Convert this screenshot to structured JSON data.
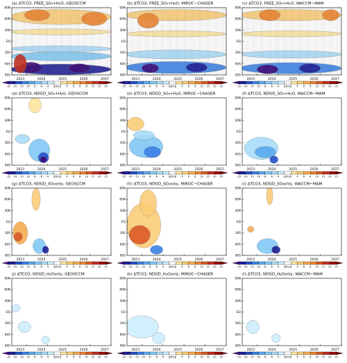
{
  "chart_data": [
    {
      "type": "contour",
      "title": "(a) ΔTCO3, FREE_SO₄+H₂O, GEOSCCM",
      "xlim": [
        2022.3,
        2027
      ],
      "xticks": [
        2023,
        2024,
        2025,
        2026,
        2027
      ],
      "ylim": [
        -90,
        90
      ],
      "yticks": [
        {
          "value": -90,
          "label": "90S"
        },
        {
          "value": -60,
          "label": "60S"
        },
        {
          "value": -30,
          "label": "30S"
        },
        {
          "value": 0,
          "label": "EQ"
        },
        {
          "value": 30,
          "label": "30N"
        },
        {
          "value": 60,
          "label": "60N"
        },
        {
          "value": 90,
          "label": "90N"
        }
      ],
      "colorbar": {
        "levels": [
          -25,
          -20,
          -15,
          -10,
          -8,
          -6,
          -4,
          -2,
          2,
          4,
          6,
          8,
          10,
          15,
          20,
          25
        ],
        "colors": [
          "#3c0a78",
          "#1e1e96",
          "#2450c8",
          "#3c82e6",
          "#5aaaf0",
          "#82c8f5",
          "#aadcfa",
          "#cdeefc",
          "#ffffff",
          "#fde6a0",
          "#fbcd78",
          "#f6ac50",
          "#ee8632",
          "#dc5a28",
          "#c32d1e",
          "#9b0f0f",
          "#6e0000"
        ],
        "label": "[DU]"
      }
    },
    {
      "type": "contour",
      "title": "(b) ΔTCO3, FREE_SO₄+H₂O, MIROC−CHASER",
      "xlim": [
        2022.3,
        2027
      ],
      "xticks": [
        2023,
        2024,
        2025,
        2026,
        2027
      ],
      "ylim": [
        -90,
        90
      ],
      "yticks": [
        {
          "value": -90,
          "label": "90S"
        },
        {
          "value": -60,
          "label": "60S"
        },
        {
          "value": -30,
          "label": "30S"
        },
        {
          "value": 0,
          "label": "EQ"
        },
        {
          "value": 30,
          "label": "30N"
        },
        {
          "value": 60,
          "label": "60N"
        },
        {
          "value": 90,
          "label": "90N"
        }
      ],
      "colorbar": {
        "levels": [
          -25,
          -20,
          -15,
          -10,
          -8,
          -6,
          -4,
          -2,
          2,
          4,
          6,
          8,
          10,
          15,
          20,
          25
        ],
        "colors": [
          "#3c0a78",
          "#1e1e96",
          "#2450c8",
          "#3c82e6",
          "#5aaaf0",
          "#82c8f5",
          "#aadcfa",
          "#cdeefc",
          "#ffffff",
          "#fde6a0",
          "#fbcd78",
          "#f6ac50",
          "#ee8632",
          "#dc5a28",
          "#c32d1e",
          "#9b0f0f",
          "#6e0000"
        ],
        "label": "[DU]"
      }
    },
    {
      "type": "contour",
      "title": "(c) ΔTCO3, FREE_SO₄+H₂O, WACCM−MAM",
      "xlim": [
        2022.3,
        2027
      ],
      "xticks": [
        2023,
        2024,
        2025,
        2026,
        2027
      ],
      "ylim": [
        -90,
        90
      ],
      "yticks": [
        {
          "value": -90,
          "label": "90S"
        },
        {
          "value": -60,
          "label": "60S"
        },
        {
          "value": -30,
          "label": "30S"
        },
        {
          "value": 0,
          "label": "EQ"
        },
        {
          "value": 30,
          "label": "30N"
        },
        {
          "value": 60,
          "label": "60N"
        },
        {
          "value": 90,
          "label": "90N"
        }
      ],
      "colorbar": {
        "levels": [
          -25,
          -20,
          -15,
          -10,
          -8,
          -6,
          -4,
          -2,
          2,
          4,
          6,
          8,
          10,
          15,
          20,
          25
        ],
        "colors": [
          "#3c0a78",
          "#1e1e96",
          "#2450c8",
          "#3c82e6",
          "#5aaaf0",
          "#82c8f5",
          "#aadcfa",
          "#cdeefc",
          "#ffffff",
          "#fde6a0",
          "#fbcd78",
          "#f6ac50",
          "#ee8632",
          "#dc5a28",
          "#c32d1e",
          "#9b0f0f",
          "#6e0000"
        ],
        "label": "[DU]"
      }
    },
    {
      "type": "contour",
      "title": "(d) ΔTCO3, NDGD_SO₄+H₂O, GEOSCCM",
      "xlim": [
        2022.3,
        2027
      ],
      "xticks": [
        2023,
        2024,
        2025,
        2026,
        2027
      ],
      "ylim": [
        -90,
        90
      ],
      "yticks": [
        {
          "value": -90,
          "label": "90S"
        },
        {
          "value": -60,
          "label": "60S"
        },
        {
          "value": -30,
          "label": "30S"
        },
        {
          "value": 0,
          "label": "EQ"
        },
        {
          "value": 30,
          "label": "30N"
        },
        {
          "value": 60,
          "label": "60N"
        },
        {
          "value": 90,
          "label": "90N"
        }
      ],
      "colorbar": {
        "levels": [
          -25,
          -20,
          -15,
          -10,
          -8,
          -6,
          -4,
          -2,
          2,
          4,
          6,
          8,
          10,
          15,
          20,
          25
        ],
        "colors": [
          "#3c0a78",
          "#1e1e96",
          "#2450c8",
          "#3c82e6",
          "#5aaaf0",
          "#82c8f5",
          "#aadcfa",
          "#cdeefc",
          "#ffffff",
          "#fde6a0",
          "#fbcd78",
          "#f6ac50",
          "#ee8632",
          "#dc5a28",
          "#c32d1e",
          "#9b0f0f",
          "#6e0000"
        ],
        "label": "[DU]"
      }
    },
    {
      "type": "contour",
      "title": "(e) ΔTCO3, NDGD_SO₄+H₂O, MIROC−CHASER",
      "xlim": [
        2022.3,
        2027
      ],
      "xticks": [
        2023,
        2024,
        2025,
        2026,
        2027
      ],
      "ylim": [
        -90,
        90
      ],
      "yticks": [
        {
          "value": -90,
          "label": "90S"
        },
        {
          "value": -60,
          "label": "60S"
        },
        {
          "value": -30,
          "label": "30S"
        },
        {
          "value": 0,
          "label": "EQ"
        },
        {
          "value": 30,
          "label": "30N"
        },
        {
          "value": 60,
          "label": "60N"
        },
        {
          "value": 90,
          "label": "90N"
        }
      ],
      "colorbar": {
        "levels": [
          -25,
          -20,
          -15,
          -10,
          -8,
          -6,
          -4,
          -2,
          2,
          4,
          6,
          8,
          10,
          15,
          20,
          25
        ],
        "colors": [
          "#3c0a78",
          "#1e1e96",
          "#2450c8",
          "#3c82e6",
          "#5aaaf0",
          "#82c8f5",
          "#aadcfa",
          "#cdeefc",
          "#ffffff",
          "#fde6a0",
          "#fbcd78",
          "#f6ac50",
          "#ee8632",
          "#dc5a28",
          "#c32d1e",
          "#9b0f0f",
          "#6e0000"
        ],
        "label": "[DU]"
      }
    },
    {
      "type": "contour",
      "title": "(f) ΔTCO3, NDGD_SO₄+H₂O, WACCM−MAM",
      "xlim": [
        2022.3,
        2027
      ],
      "xticks": [
        2023,
        2024,
        2025,
        2026,
        2027
      ],
      "ylim": [
        -90,
        90
      ],
      "yticks": [
        {
          "value": -90,
          "label": "90S"
        },
        {
          "value": -60,
          "label": "60S"
        },
        {
          "value": -30,
          "label": "30S"
        },
        {
          "value": 0,
          "label": "EQ"
        },
        {
          "value": 30,
          "label": "30N"
        },
        {
          "value": 60,
          "label": "60N"
        },
        {
          "value": 90,
          "label": "90N"
        }
      ],
      "colorbar": {
        "levels": [
          -25,
          -20,
          -15,
          -10,
          -8,
          -6,
          -4,
          -2,
          2,
          4,
          6,
          8,
          10,
          15,
          20,
          25
        ],
        "colors": [
          "#3c0a78",
          "#1e1e96",
          "#2450c8",
          "#3c82e6",
          "#5aaaf0",
          "#82c8f5",
          "#aadcfa",
          "#cdeefc",
          "#ffffff",
          "#fde6a0",
          "#fbcd78",
          "#f6ac50",
          "#ee8632",
          "#dc5a28",
          "#c32d1e",
          "#9b0f0f",
          "#6e0000"
        ],
        "label": "[DU]"
      }
    },
    {
      "type": "contour",
      "title": "(g) ΔTCO3, NDGD_SO₄only, GEOSCCM",
      "xlim": [
        2022.3,
        2027
      ],
      "xticks": [
        2023,
        2024,
        2025,
        2026,
        2027
      ],
      "ylim": [
        -90,
        90
      ],
      "yticks": [
        {
          "value": -90,
          "label": "90S"
        },
        {
          "value": -60,
          "label": "60S"
        },
        {
          "value": -30,
          "label": "30S"
        },
        {
          "value": 0,
          "label": "EQ"
        },
        {
          "value": 30,
          "label": "30N"
        },
        {
          "value": 60,
          "label": "60N"
        },
        {
          "value": 90,
          "label": "90N"
        }
      ],
      "colorbar": {
        "levels": [
          -25,
          -20,
          -15,
          -10,
          -8,
          -6,
          -4,
          -2,
          2,
          4,
          6,
          8,
          10,
          15,
          20,
          25
        ],
        "colors": [
          "#3c0a78",
          "#1e1e96",
          "#2450c8",
          "#3c82e6",
          "#5aaaf0",
          "#82c8f5",
          "#aadcfa",
          "#cdeefc",
          "#ffffff",
          "#fde6a0",
          "#fbcd78",
          "#f6ac50",
          "#ee8632",
          "#dc5a28",
          "#c32d1e",
          "#9b0f0f",
          "#6e0000"
        ],
        "label": "[DU]"
      }
    },
    {
      "type": "contour",
      "title": "(h) ΔTCO3, NDGD_SO₄only, MIROC−CHASER",
      "xlim": [
        2022.3,
        2027
      ],
      "xticks": [
        2023,
        2024,
        2025,
        2026,
        2027
      ],
      "ylim": [
        -90,
        90
      ],
      "yticks": [
        {
          "value": -90,
          "label": "90S"
        },
        {
          "value": -60,
          "label": "60S"
        },
        {
          "value": -30,
          "label": "30S"
        },
        {
          "value": 0,
          "label": "EQ"
        },
        {
          "value": 30,
          "label": "30N"
        },
        {
          "value": 60,
          "label": "60N"
        },
        {
          "value": 90,
          "label": "90N"
        }
      ],
      "colorbar": {
        "levels": [
          -25,
          -20,
          -15,
          -10,
          -8,
          -6,
          -4,
          -2,
          2,
          4,
          6,
          8,
          10,
          15,
          20,
          25
        ],
        "colors": [
          "#3c0a78",
          "#1e1e96",
          "#2450c8",
          "#3c82e6",
          "#5aaaf0",
          "#82c8f5",
          "#aadcfa",
          "#cdeefc",
          "#ffffff",
          "#fde6a0",
          "#fbcd78",
          "#f6ac50",
          "#ee8632",
          "#dc5a28",
          "#c32d1e",
          "#9b0f0f",
          "#6e0000"
        ],
        "label": "[DU]"
      }
    },
    {
      "type": "contour",
      "title": "(i) ΔTCO3, NDGD_SO₄only, WACCM−MAM",
      "xlim": [
        2022.3,
        2027
      ],
      "xticks": [
        2023,
        2024,
        2025,
        2026,
        2027
      ],
      "ylim": [
        -90,
        90
      ],
      "yticks": [
        {
          "value": -90,
          "label": "90S"
        },
        {
          "value": -60,
          "label": "60S"
        },
        {
          "value": -30,
          "label": "30S"
        },
        {
          "value": 0,
          "label": "EQ"
        },
        {
          "value": 30,
          "label": "30N"
        },
        {
          "value": 60,
          "label": "60N"
        },
        {
          "value": 90,
          "label": "90N"
        }
      ],
      "colorbar": {
        "levels": [
          -25,
          -20,
          -15,
          -10,
          -8,
          -6,
          -4,
          -2,
          2,
          4,
          6,
          8,
          10,
          15,
          20,
          25
        ],
        "colors": [
          "#3c0a78",
          "#1e1e96",
          "#2450c8",
          "#3c82e6",
          "#5aaaf0",
          "#82c8f5",
          "#aadcfa",
          "#cdeefc",
          "#ffffff",
          "#fde6a0",
          "#fbcd78",
          "#f6ac50",
          "#ee8632",
          "#dc5a28",
          "#c32d1e",
          "#9b0f0f",
          "#6e0000"
        ],
        "label": "[DU]"
      }
    },
    {
      "type": "contour",
      "title": "(j) ΔTCO3, NDGD_H₂Oonly, GEOSCCM",
      "xlim": [
        2022.3,
        2027
      ],
      "xticks": [
        2023,
        2024,
        2025,
        2026,
        2027
      ],
      "ylim": [
        -90,
        90
      ],
      "yticks": [
        {
          "value": -90,
          "label": "90S"
        },
        {
          "value": -60,
          "label": "60S"
        },
        {
          "value": -30,
          "label": "30S"
        },
        {
          "value": 0,
          "label": "EQ"
        },
        {
          "value": 30,
          "label": "30N"
        },
        {
          "value": 60,
          "label": "60N"
        },
        {
          "value": 90,
          "label": "90N"
        }
      ],
      "colorbar": {
        "levels": [
          -25,
          -20,
          -15,
          -10,
          -8,
          -6,
          -4,
          -2,
          2,
          4,
          6,
          8,
          10,
          15,
          20,
          25
        ],
        "colors": [
          "#3c0a78",
          "#1e1e96",
          "#2450c8",
          "#3c82e6",
          "#5aaaf0",
          "#82c8f5",
          "#aadcfa",
          "#cdeefc",
          "#ffffff",
          "#fde6a0",
          "#fbcd78",
          "#f6ac50",
          "#ee8632",
          "#dc5a28",
          "#c32d1e",
          "#9b0f0f",
          "#6e0000"
        ],
        "label": "[DU]"
      }
    },
    {
      "type": "contour",
      "title": "(k) ΔTCO3, NDGD_H₂Oonly, MIROC−CHASER",
      "xlim": [
        2022.3,
        2027
      ],
      "xticks": [
        2023,
        2024,
        2025,
        2026,
        2027
      ],
      "ylim": [
        -90,
        90
      ],
      "yticks": [
        {
          "value": -90,
          "label": "90S"
        },
        {
          "value": -60,
          "label": "60S"
        },
        {
          "value": -30,
          "label": "30S"
        },
        {
          "value": 0,
          "label": "EQ"
        },
        {
          "value": 30,
          "label": "30N"
        },
        {
          "value": 60,
          "label": "60N"
        },
        {
          "value": 90,
          "label": "90N"
        }
      ],
      "colorbar": {
        "levels": [
          -25,
          -20,
          -15,
          -10,
          -8,
          -6,
          -4,
          -2,
          2,
          4,
          6,
          8,
          10,
          15,
          20,
          25
        ],
        "colors": [
          "#3c0a78",
          "#1e1e96",
          "#2450c8",
          "#3c82e6",
          "#5aaaf0",
          "#82c8f5",
          "#aadcfa",
          "#cdeefc",
          "#ffffff",
          "#fde6a0",
          "#fbcd78",
          "#f6ac50",
          "#ee8632",
          "#dc5a28",
          "#c32d1e",
          "#9b0f0f",
          "#6e0000"
        ],
        "label": "[DU]"
      }
    },
    {
      "type": "contour",
      "title": "(l) ΔTCO3, NDGD_H₂Oonly, WACCM−MAM",
      "xlim": [
        2022.3,
        2027
      ],
      "xticks": [
        2023,
        2024,
        2025,
        2026,
        2027
      ],
      "ylim": [
        -90,
        90
      ],
      "yticks": [
        {
          "value": -90,
          "label": "90S"
        },
        {
          "value": -60,
          "label": "60S"
        },
        {
          "value": -30,
          "label": "30S"
        },
        {
          "value": 0,
          "label": "EQ"
        },
        {
          "value": 30,
          "label": "30N"
        },
        {
          "value": 60,
          "label": "60N"
        },
        {
          "value": 90,
          "label": "90N"
        }
      ],
      "colorbar": {
        "levels": [
          -25,
          -20,
          -15,
          -10,
          -8,
          -6,
          -4,
          -2,
          2,
          4,
          6,
          8,
          10,
          15,
          20,
          25
        ],
        "colors": [
          "#3c0a78",
          "#1e1e96",
          "#2450c8",
          "#3c82e6",
          "#5aaaf0",
          "#82c8f5",
          "#aadcfa",
          "#cdeefc",
          "#ffffff",
          "#fde6a0",
          "#fbcd78",
          "#f6ac50",
          "#ee8632",
          "#dc5a28",
          "#c32d1e",
          "#9b0f0f",
          "#6e0000"
        ],
        "label": "[DU]"
      }
    }
  ]
}
